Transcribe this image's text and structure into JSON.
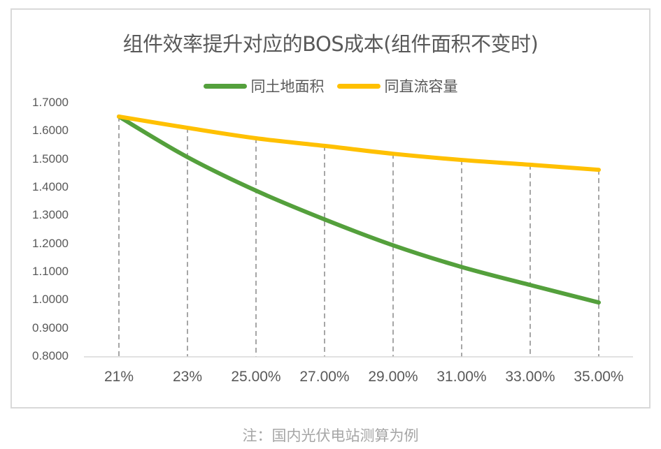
{
  "chart_data": {
    "type": "line",
    "title": "组件效率提升对应的BOS成本(组件面积不变时)",
    "xlabel": "",
    "ylabel": "",
    "categories": [
      "21%",
      "23%",
      "25.00%",
      "27.00%",
      "29.00%",
      "31.00%",
      "33.00%",
      "35.00%"
    ],
    "series": [
      {
        "name": "同土地面积",
        "color": "#54A03C",
        "values": [
          1.653,
          1.509,
          1.39,
          1.288,
          1.196,
          1.119,
          1.055,
          0.993
        ]
      },
      {
        "name": "同直流容量",
        "color": "#FFC000",
        "values": [
          1.653,
          1.613,
          1.576,
          1.549,
          1.521,
          1.499,
          1.482,
          1.464
        ]
      }
    ],
    "yticks": [
      "1.7000",
      "1.6000",
      "1.5000",
      "1.4000",
      "1.3000",
      "1.2000",
      "1.1000",
      "1.0000",
      "0.9000",
      "0.8000"
    ],
    "ylim": [
      0.8,
      1.7
    ],
    "grid": false,
    "drop_lines": true,
    "legend_position": "top",
    "smooth": true
  },
  "footnote": "注：国内光伏电站测算为例"
}
